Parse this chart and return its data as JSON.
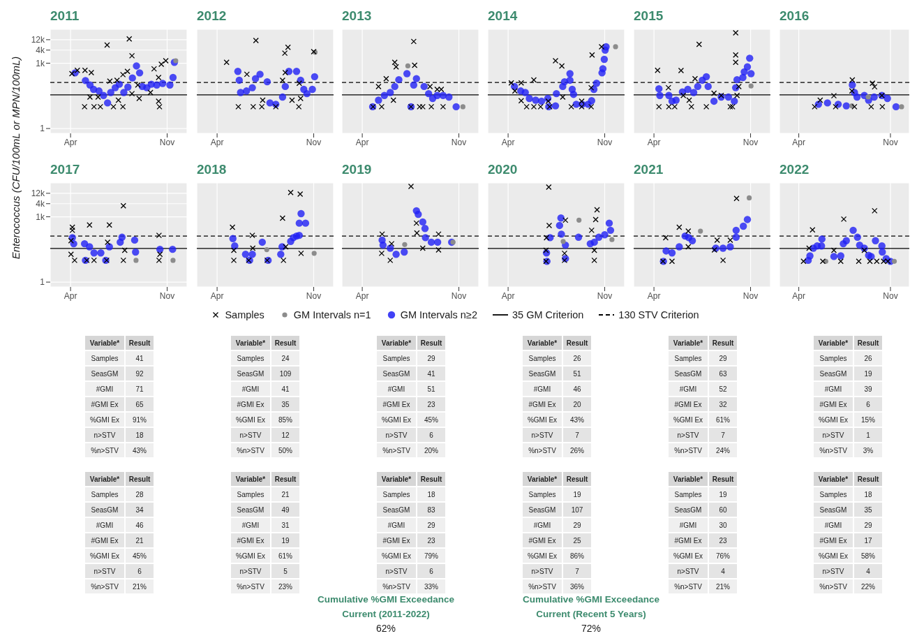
{
  "chart_data": [
    {
      "type": "scatter",
      "title": "2011",
      "ylabel": "Enterococcus (CFU/100mL or MPN/100mL)",
      "legend": "bottom",
      "log": true,
      "grid": true,
      "xlim": [
        "--02-15",
        "--12-15"
      ],
      "xticks": [
        {
          "value": "--04-01",
          "label": "Apr"
        },
        {
          "value": "--11-01",
          "label": "Nov"
        }
      ],
      "ylim": [
        0.6,
        36000
      ],
      "yticks": [
        1,
        {
          "value": 1000,
          "label": "1k"
        },
        {
          "value": 4000,
          "label": "4k"
        },
        {
          "value": 12000,
          "label": "12k"
        }
      ],
      "ref_lines": [
        {
          "axis": "y",
          "value": 35,
          "label": "35 GM Criterion",
          "line_style": "solid",
          "color": "#000000"
        },
        {
          "axis": "y",
          "value": 130,
          "label": "130 STV Criterion",
          "line_style": "dashed",
          "color": "#000000"
        }
      ],
      "series": [
        {
          "name": "Samples",
          "color": "#000000",
          "marker": "cross",
          "x": [
            "--04-04",
            "--04-16",
            "--05-03",
            "--05-17",
            "--05-02",
            "--05-23",
            "--06-06",
            "--05-14",
            "--06-01",
            "--06-21",
            "--06-27",
            "--07-05",
            "--07-13",
            "--07-16",
            "--07-26",
            "--07-26",
            "--08-05",
            "--08-09",
            "--08-15",
            "--08-15",
            "--08-31",
            "--08-28",
            "--09-25",
            "--10-03",
            "--10-13",
            "--10-13",
            "--10-15",
            "--10-19",
            "--10-29"
          ],
          "values": [
            330,
            470,
            470,
            370,
            10,
            10,
            10,
            28,
            28,
            6800,
            150,
            10,
            165,
            20,
            10,
            300,
            420,
            13000,
            2200,
            40,
            24,
            100,
            45,
            550,
            220,
            18,
            10,
            900,
            1300
          ]
        },
        {
          "name": "GM Intervals n=1",
          "color": "#8c8c8c",
          "marker": "circle",
          "x": [
            "--11-20"
          ],
          "values": [
            1300
          ]
        },
        {
          "name": "GM Intervals n≥2",
          "color": "#2020f5",
          "marker": "circle",
          "x": [
            "--04-11",
            "--05-04",
            "--05-14",
            "--05-22",
            "--06-03",
            "--06-13",
            "--06-22",
            "--06-29",
            "--07-09",
            "--07-18",
            "--07-28",
            "--08-06",
            "--08-16",
            "--08-25",
            "--09-01",
            "--09-07",
            "--09-17",
            "--09-27",
            "--10-09",
            "--10-22",
            "--11-07",
            "--11-14",
            "--11-17"
          ],
          "values": [
            360,
            160,
            100,
            63,
            53,
            33,
            15,
            45,
            75,
            108,
            45,
            80,
            210,
            750,
            360,
            85,
            75,
            108,
            100,
            118,
            100,
            220,
            1100
          ]
        }
      ]
    },
    {
      "type": "scatter",
      "title": "2012",
      "tick_labels": "x",
      "log": true,
      "grid": true,
      "xlim": [
        "--02-15",
        "--12-15"
      ],
      "xticks": [
        {
          "value": "--04-01",
          "label": "Apr"
        },
        {
          "value": "--11-01",
          "label": "Nov"
        }
      ],
      "ylim": [
        0.6,
        36000
      ],
      "yticks": [
        {
          "value": 1,
          "label": null
        },
        {
          "value": 1000,
          "label": null
        },
        {
          "value": 4000,
          "label": null
        },
        {
          "value": 12000,
          "label": null
        }
      ],
      "ref_lines": [
        {
          "axis": "y",
          "value": 35,
          "line_style": "solid",
          "color": "#000000"
        },
        {
          "axis": "y",
          "value": 130,
          "line_style": "dashed",
          "color": "#000000"
        }
      ],
      "series": [
        {
          "color": "#000000",
          "marker": "cross",
          "x": [
            "--04-22",
            "--05-18",
            "--06-06",
            "--06-26",
            "--06-20",
            "--07-09",
            "--07-11",
            "--08-09",
            "--08-24",
            "--08-29",
            "--09-05",
            "--08-30",
            "--09-14",
            "--09-29",
            "--10-03",
            "--09-30",
            "--11-01"
          ],
          "values": [
            1100,
            10,
            310,
            11000,
            10,
            10,
            20,
            10,
            165,
            2900,
            5400,
            370,
            20,
            10,
            24,
            120,
            3400
          ]
        },
        {
          "color": "#8c8c8c",
          "marker": "circle",
          "x": [
            "--11-04"
          ],
          "values": [
            3200
          ]
        },
        {
          "color": "#2020f5",
          "marker": "circle",
          "x": [
            "--05-17",
            "--05-20",
            "--05-23",
            "--06-05",
            "--06-18",
            "--06-25",
            "--07-05",
            "--07-21",
            "--07-27",
            "--08-09",
            "--08-24",
            "--08-30",
            "--09-07",
            "--09-24",
            "--10-03",
            "--10-10",
            "--10-17",
            "--10-29",
            "--11-03"
          ],
          "values": [
            420,
            165,
            45,
            53,
            75,
            195,
            310,
            140,
            15,
            13,
            28,
            85,
            420,
            420,
            165,
            63,
            40,
            63,
            240
          ]
        }
      ]
    },
    {
      "type": "scatter",
      "title": "2013",
      "tick_labels": "x",
      "log": true,
      "grid": true,
      "xlim": [
        "--02-15",
        "--12-15"
      ],
      "xticks": [
        {
          "value": "--04-01",
          "label": "Apr"
        },
        {
          "value": "--11-01",
          "label": "Nov"
        }
      ],
      "ylim": [
        0.6,
        36000
      ],
      "yticks": [
        {
          "value": 1,
          "label": null
        },
        {
          "value": 1000,
          "label": null
        },
        {
          "value": 4000,
          "label": null
        },
        {
          "value": 12000,
          "label": null
        }
      ],
      "ref_lines": [
        {
          "axis": "y",
          "value": 35,
          "line_style": "solid",
          "color": "#000000"
        },
        {
          "axis": "y",
          "value": 130,
          "line_style": "dashed",
          "color": "#000000"
        }
      ],
      "series": [
        {
          "color": "#000000",
          "marker": "cross",
          "x": [
            "--04-25",
            "--05-07",
            "--05-14",
            "--05-24",
            "--06-12",
            "--06-15",
            "--06-09",
            "--07-18",
            "--07-24",
            "--07-26",
            "--08-06",
            "--08-13",
            "--08-29",
            "--09-01",
            "--09-14",
            "--09-23",
            "--09-27"
          ],
          "values": [
            10,
            85,
            10,
            195,
            1100,
            680,
            20,
            10,
            10000,
            800,
            10,
            10,
            85,
            10,
            63,
            63,
            10
          ]
        },
        {
          "color": "#8c8c8c",
          "marker": "circle",
          "x": [
            "--07-11",
            "--11-10"
          ],
          "values": [
            750,
            10
          ]
        },
        {
          "color": "#2020f5",
          "marker": "circle",
          "x": [
            "--04-24",
            "--05-07",
            "--05-20",
            "--06-02",
            "--06-12",
            "--06-21",
            "--07-09",
            "--07-18",
            "--07-24",
            "--07-30",
            "--08-16",
            "--08-26",
            "--09-04",
            "--09-14",
            "--09-27",
            "--10-10",
            "--10-26"
          ],
          "values": [
            10,
            20,
            33,
            45,
            85,
            175,
            330,
            10,
            100,
            195,
            85,
            40,
            24,
            33,
            33,
            28,
            10
          ]
        }
      ]
    },
    {
      "type": "scatter",
      "title": "2014",
      "tick_labels": "x",
      "log": true,
      "grid": true,
      "xlim": [
        "--02-15",
        "--12-15"
      ],
      "xticks": [
        {
          "value": "--04-01",
          "label": "Apr"
        },
        {
          "value": "--11-01",
          "label": "Nov"
        }
      ],
      "ylim": [
        0.6,
        36000
      ],
      "yticks": [
        {
          "value": 1,
          "label": null
        },
        {
          "value": 1000,
          "label": null
        },
        {
          "value": 4000,
          "label": null
        },
        {
          "value": 12000,
          "label": null
        }
      ],
      "ref_lines": [
        {
          "axis": "y",
          "value": 35,
          "line_style": "solid",
          "color": "#000000"
        },
        {
          "axis": "y",
          "value": 130,
          "line_style": "dashed",
          "color": "#000000"
        }
      ],
      "series": [
        {
          "color": "#000000",
          "marker": "cross",
          "x": [
            "--04-08",
            "--04-16",
            "--04-30",
            "--04-30",
            "--05-12",
            "--05-28",
            "--05-28",
            "--06-12",
            "--06-29",
            "--07-02",
            "--07-15",
            "--07-29",
            "--07-31",
            "--08-19",
            "--09-11",
            "--09-11",
            "--10-02",
            "--10-02",
            "--10-04",
            "--10-25"
          ],
          "values": [
            125,
            53,
            125,
            19,
            10,
            170,
            10,
            10,
            18,
            10,
            1300,
            750,
            28,
            10,
            18,
            10,
            75,
            10,
            2400,
            5700
          ]
        },
        {
          "color": "#8c8c8c",
          "marker": "circle",
          "x": [
            "--11-25"
          ],
          "values": [
            5700
          ]
        },
        {
          "color": "#2020f5",
          "marker": "circle",
          "x": [
            "--04-15",
            "--04-29",
            "--05-09",
            "--05-18",
            "--06-01",
            "--06-14",
            "--06-28",
            "--06-30",
            "--07-15",
            "--07-17",
            "--07-31",
            "--08-04",
            "--08-16",
            "--08-16",
            "--08-21",
            "--08-24",
            "--08-30",
            "--09-12",
            "--09-25",
            "--10-03",
            "--10-08",
            "--10-14",
            "--10-26",
            "--10-28",
            "--10-31",
            "--11-02",
            "--11-04"
          ],
          "values": [
            85,
            53,
            45,
            24,
            20,
            18,
            24,
            10,
            11,
            40,
            85,
            140,
            330,
            165,
            63,
            37,
            13,
            13,
            13,
            19,
            63,
            120,
            360,
            560,
            1500,
            4000,
            5700
          ]
        }
      ]
    },
    {
      "type": "scatter",
      "title": "2015",
      "tick_labels": "x",
      "log": true,
      "grid": true,
      "xlim": [
        "--02-15",
        "--12-15"
      ],
      "xticks": [
        {
          "value": "--04-01",
          "label": "Apr"
        },
        {
          "value": "--11-01",
          "label": "Nov"
        }
      ],
      "ylim": [
        0.6,
        36000
      ],
      "yticks": [
        {
          "value": 1,
          "label": null
        },
        {
          "value": 1000,
          "label": null
        },
        {
          "value": 4000,
          "label": null
        },
        {
          "value": 12000,
          "label": null
        }
      ],
      "ref_lines": [
        {
          "axis": "y",
          "value": 35,
          "line_style": "solid",
          "color": "#000000"
        },
        {
          "axis": "y",
          "value": 130,
          "line_style": "dashed",
          "color": "#000000"
        }
      ],
      "series": [
        {
          "color": "#000000",
          "marker": "cross",
          "x": [
            "--04-09",
            "--04-12",
            "--05-03",
            "--05-04",
            "--05-17",
            "--05-31",
            "--06-05",
            "--06-18",
            "--06-23",
            "--07-01",
            "--07-10",
            "--07-26",
            "--08-12",
            "--08-28",
            "--09-17",
            "--09-22",
            "--09-29",
            "--09-29",
            "--09-29",
            "--10-02",
            "--10-06"
          ],
          "values": [
            470,
            10,
            75,
            10,
            10,
            460,
            33,
            20,
            10,
            195,
            7400,
            10,
            42,
            33,
            10,
            10,
            25000,
            2400,
            1100,
            33,
            85
          ]
        },
        {
          "color": "#8c8c8c",
          "marker": "circle",
          "x": [
            "--11-02"
          ],
          "values": [
            90
          ]
        },
        {
          "color": "#2020f5",
          "marker": "circle",
          "x": [
            "--04-12",
            "--04-14",
            "--05-04",
            "--05-11",
            "--05-20",
            "--06-03",
            "--06-15",
            "--06-28",
            "--07-07",
            "--07-17",
            "--07-26",
            "--07-30",
            "--08-12",
            "--08-28",
            "--09-13",
            "--09-26",
            "--09-29",
            "--10-02",
            "--10-15",
            "--10-18",
            "--10-25",
            "--10-30",
            "--11-02"
          ],
          "values": [
            67,
            33,
            33,
            18,
            20,
            48,
            63,
            45,
            85,
            165,
            240,
            85,
            18,
            28,
            28,
            18,
            75,
            175,
            220,
            400,
            680,
            1700,
            330
          ]
        }
      ]
    },
    {
      "type": "scatter",
      "title": "2016",
      "tick_labels": "x",
      "log": true,
      "grid": true,
      "xlim": [
        "--02-15",
        "--12-15"
      ],
      "xticks": [
        {
          "value": "--04-01",
          "label": "Apr"
        },
        {
          "value": "--11-01",
          "label": "Nov"
        }
      ],
      "ylim": [
        0.6,
        36000
      ],
      "yticks": [
        {
          "value": 1,
          "label": null
        },
        {
          "value": 1000,
          "label": null
        },
        {
          "value": 4000,
          "label": null
        },
        {
          "value": 12000,
          "label": null
        }
      ],
      "ref_lines": [
        {
          "axis": "y",
          "value": 35,
          "line_style": "solid",
          "color": "#000000"
        },
        {
          "axis": "y",
          "value": 130,
          "line_style": "dashed",
          "color": "#000000"
        }
      ],
      "series": [
        {
          "color": "#000000",
          "marker": "cross",
          "x": [
            "--05-08",
            "--05-21",
            "--06-22",
            "--06-26",
            "--08-04",
            "--08-03",
            "--08-09",
            "--09-20",
            "--09-25",
            "--09-17",
            "--10-12",
            "--10-13"
          ],
          "values": [
            10,
            20,
            32,
            10,
            170,
            53,
            10,
            120,
            82,
            10,
            33,
            10
          ]
        },
        {
          "color": "#8c8c8c",
          "marker": "circle",
          "x": [
            "--08-03",
            "--09-10",
            "--11-27"
          ],
          "values": [
            11,
            28,
            10
          ]
        },
        {
          "color": "#2020f5",
          "marker": "circle",
          "x": [
            "--05-17",
            "--06-07",
            "--07-02",
            "--07-21",
            "--08-04",
            "--08-09",
            "--08-15",
            "--09-01",
            "--09-11",
            "--09-24",
            "--10-12",
            "--10-25",
            "--11-14"
          ],
          "values": [
            13,
            15,
            13,
            11,
            100,
            45,
            28,
            33,
            20,
            28,
            33,
            24,
            10
          ]
        }
      ]
    },
    {
      "type": "scatter",
      "title": "2017",
      "log": true,
      "grid": true,
      "xlim": [
        "--02-15",
        "--12-15"
      ],
      "xticks": [
        {
          "value": "--04-01",
          "label": "Apr"
        },
        {
          "value": "--11-01",
          "label": "Nov"
        }
      ],
      "ylim": [
        0.6,
        36000
      ],
      "yticks": [
        1,
        {
          "value": 1000,
          "label": "1k"
        },
        {
          "value": 4000,
          "label": "4k"
        },
        {
          "value": 12000,
          "label": "12k"
        }
      ],
      "ref_lines": [
        {
          "axis": "y",
          "value": 35,
          "line_style": "solid",
          "color": "#000000"
        },
        {
          "axis": "y",
          "value": 130,
          "line_style": "dashed",
          "color": "#000000"
        }
      ],
      "series": [
        {
          "color": "#000000",
          "marker": "cross",
          "x": [
            "--04-05",
            "--04-05",
            "--04-02",
            "--04-02",
            "--04-10",
            "--05-13",
            "--05-07",
            "--05-23",
            "--06-20",
            "--06-26",
            "--06-22",
            "--07-27",
            "--07-27",
            "--07-30",
            "--10-14",
            "--10-14",
            "--10-16"
          ],
          "values": [
            330,
            240,
            80,
            19,
            10,
            420,
            10,
            10,
            10,
            420,
            68,
            3200,
            10,
            29,
            140,
            10,
            19
          ]
        },
        {
          "color": "#8c8c8c",
          "marker": "circle",
          "x": [
            "--08-24",
            "--11-14"
          ],
          "values": [
            10,
            10
          ]
        },
        {
          "color": "#2020f5",
          "marker": "circle",
          "x": [
            "--04-05",
            "--04-08",
            "--05-02",
            "--05-04",
            "--05-13",
            "--05-23",
            "--06-07",
            "--06-18",
            "--06-26",
            "--07-20",
            "--07-24",
            "--08-21",
            "--08-23",
            "--10-16",
            "--11-13"
          ],
          "values": [
            110,
            58,
            58,
            10,
            42,
            22,
            22,
            10,
            42,
            68,
            115,
            85,
            24,
            32,
            32
          ]
        }
      ]
    },
    {
      "type": "scatter",
      "title": "2018",
      "tick_labels": "x",
      "log": true,
      "grid": true,
      "xlim": [
        "--02-15",
        "--12-15"
      ],
      "xticks": [
        {
          "value": "--04-01",
          "label": "Apr"
        },
        {
          "value": "--11-01",
          "label": "Nov"
        }
      ],
      "ylim": [
        0.6,
        36000
      ],
      "yticks": [
        {
          "value": 1,
          "label": null
        },
        {
          "value": 1000,
          "label": null
        },
        {
          "value": 4000,
          "label": null
        },
        {
          "value": 12000,
          "label": null
        }
      ],
      "ref_lines": [
        {
          "axis": "y",
          "value": 35,
          "line_style": "solid",
          "color": "#000000"
        },
        {
          "axis": "y",
          "value": 130,
          "line_style": "dashed",
          "color": "#000000"
        }
      ],
      "series": [
        {
          "color": "#000000",
          "marker": "cross",
          "x": [
            "--05-05",
            "--05-08",
            "--05-08",
            "--06-18",
            "--06-19",
            "--06-10",
            "--07-21",
            "--08-24",
            "--08-26",
            "--09-11",
            "--10-02",
            "--10-04",
            "--08-31"
          ],
          "values": [
            330,
            29,
            10,
            140,
            36,
            10,
            10,
            870,
            10,
            13000,
            11000,
            21,
            42
          ]
        },
        {
          "color": "#8c8c8c",
          "marker": "circle",
          "x": [
            "--07-20",
            "--11-02"
          ],
          "values": [
            31,
            21
          ]
        },
        {
          "color": "#2020f5",
          "marker": "circle",
          "x": [
            "--05-06",
            "--05-10",
            "--06-03",
            "--06-12",
            "--06-18",
            "--07-10",
            "--07-23",
            "--08-20",
            "--08-23",
            "--09-11",
            "--09-17",
            "--09-24",
            "--09-30",
            "--10-04",
            "--09-30",
            "--10-14"
          ],
          "values": [
            100,
            46,
            19,
            10,
            19,
            68,
            10,
            19,
            42,
            74,
            110,
            130,
            140,
            1400,
            510,
            510
          ]
        }
      ]
    },
    {
      "type": "scatter",
      "title": "2019",
      "tick_labels": "x",
      "log": true,
      "grid": true,
      "xlim": [
        "--02-15",
        "--12-15"
      ],
      "xticks": [
        {
          "value": "--04-01",
          "label": "Apr"
        },
        {
          "value": "--11-01",
          "label": "Nov"
        }
      ],
      "ylim": [
        0.6,
        36000
      ],
      "yticks": [
        {
          "value": 1,
          "label": null
        },
        {
          "value": 1000,
          "label": null
        },
        {
          "value": 4000,
          "label": null
        },
        {
          "value": 12000,
          "label": null
        }
      ],
      "ref_lines": [
        {
          "axis": "y",
          "value": 35,
          "line_style": "solid",
          "color": "#000000"
        },
        {
          "axis": "y",
          "value": 130,
          "line_style": "dashed",
          "color": "#000000"
        }
      ],
      "series": [
        {
          "color": "#000000",
          "marker": "cross",
          "x": [
            "--05-15",
            "--05-14",
            "--06-05",
            "--06-02",
            "--07-18",
            "--07-30",
            "--07-31",
            "--08-13",
            "--09-17",
            "--09-17"
          ],
          "values": [
            160,
            21,
            58,
            10,
            25000,
            510,
            180,
            36,
            160,
            30
          ]
        },
        {
          "color": "#8c8c8c",
          "marker": "circle",
          "x": [
            "--07-04",
            "--10-19"
          ],
          "values": [
            53,
            68
          ]
        },
        {
          "color": "#2020f5",
          "marker": "circle",
          "x": [
            "--05-15",
            "--05-17",
            "--06-02",
            "--06-15",
            "--07-03",
            "--07-30",
            "--08-03",
            "--08-13",
            "--08-18",
            "--08-19",
            "--09-01",
            "--09-15",
            "--10-16"
          ],
          "values": [
            85,
            50,
            36,
            19,
            24,
            1900,
            1300,
            580,
            290,
            110,
            68,
            68,
            68
          ]
        }
      ]
    },
    {
      "type": "scatter",
      "title": "2020",
      "tick_labels": "x",
      "log": true,
      "grid": true,
      "xlim": [
        "--02-15",
        "--12-15"
      ],
      "xticks": [
        {
          "value": "--04-01",
          "label": "Apr"
        },
        {
          "value": "--11-01",
          "label": "Nov"
        }
      ],
      "ylim": [
        0.6,
        36000
      ],
      "yticks": [
        {
          "value": 1,
          "label": null
        },
        {
          "value": 1000,
          "label": null
        },
        {
          "value": 4000,
          "label": null
        },
        {
          "value": 12000,
          "label": null
        }
      ],
      "ref_lines": [
        {
          "axis": "y",
          "value": 35,
          "line_style": "solid",
          "color": "#000000"
        },
        {
          "axis": "y",
          "value": 130,
          "line_style": "dashed",
          "color": "#000000"
        }
      ],
      "series": [
        {
          "color": "#000000",
          "marker": "cross",
          "x": [
            "--06-30",
            "--07-01",
            "--06-25",
            "--06-24",
            "--06-24",
            "--08-06",
            "--08-04",
            "--08-04",
            "--10-03",
            "--10-09",
            "--10-12",
            "--10-15",
            "--10-09"
          ],
          "values": [
            23000,
            400,
            110,
            29,
            9,
            700,
            21,
            10,
            240,
            10,
            750,
            2100,
            29
          ]
        },
        {
          "color": "#8c8c8c",
          "marker": "circle",
          "x": [
            "--08-01",
            "--09-05",
            "--11-17"
          ],
          "values": [
            74,
            700,
            90
          ]
        },
        {
          "color": "#2020f5",
          "marker": "circle",
          "x": [
            "--06-25",
            "--06-26",
            "--07-03",
            "--07-24",
            "--07-27",
            "--07-28",
            "--08-06",
            "--08-06",
            "--09-04",
            "--09-30",
            "--10-09",
            "--10-19",
            "--11-01",
            "--11-11",
            "--11-14"
          ],
          "values": [
            22,
            9,
            110,
            400,
            880,
            160,
            50,
            12,
            115,
            58,
            68,
            115,
            150,
            510,
            240
          ]
        }
      ]
    },
    {
      "type": "scatter",
      "title": "2021",
      "tick_labels": "x",
      "log": true,
      "grid": true,
      "xlim": [
        "--02-15",
        "--12-15"
      ],
      "xticks": [
        {
          "value": "--04-01",
          "label": "Apr"
        },
        {
          "value": "--11-01",
          "label": "Nov"
        }
      ],
      "ylim": [
        0.6,
        36000
      ],
      "yticks": [
        {
          "value": 1,
          "label": null
        },
        {
          "value": 1000,
          "label": null
        },
        {
          "value": 4000,
          "label": null
        },
        {
          "value": 12000,
          "label": null
        }
      ],
      "ref_lines": [
        {
          "axis": "y",
          "value": 35,
          "line_style": "solid",
          "color": "#000000"
        },
        {
          "axis": "y",
          "value": 130,
          "line_style": "dashed",
          "color": "#000000"
        }
      ],
      "series": [
        {
          "color": "#000000",
          "marker": "cross",
          "x": [
            "--04-21",
            "--04-27",
            "--05-11",
            "--05-27",
            "--06-16",
            "--06-16",
            "--08-13",
            "--08-19",
            "--09-01",
            "--09-17",
            "--10-01"
          ],
          "values": [
            9,
            110,
            9,
            330,
            220,
            42,
            30,
            85,
            10,
            85,
            7000
          ]
        },
        {
          "color": "#8c8c8c",
          "marker": "circle",
          "x": [
            "--07-13",
            "--10-29"
          ],
          "values": [
            220,
            7400
          ]
        },
        {
          "color": "#2020f5",
          "marker": "circle",
          "x": [
            "--04-22",
            "--04-28",
            "--05-11",
            "--05-27",
            "--06-09",
            "--06-17",
            "--06-25",
            "--08-16",
            "--09-01",
            "--09-17",
            "--09-30",
            "--09-30",
            "--10-16",
            "--10-25"
          ],
          "values": [
            9,
            27,
            22,
            42,
            130,
            110,
            80,
            36,
            36,
            42,
            115,
            240,
            370,
            750
          ]
        }
      ]
    },
    {
      "type": "scatter",
      "title": "2022",
      "tick_labels": "x",
      "log": true,
      "grid": true,
      "xlim": [
        "--02-15",
        "--12-15"
      ],
      "xticks": [
        {
          "value": "--04-01",
          "label": "Apr"
        },
        {
          "value": "--11-01",
          "label": "Nov"
        }
      ],
      "ylim": [
        0.6,
        36000
      ],
      "yticks": [
        {
          "value": 1,
          "label": null
        },
        {
          "value": 1000,
          "label": null
        },
        {
          "value": 4000,
          "label": null
        },
        {
          "value": 12000,
          "label": null
        }
      ],
      "ref_lines": [
        {
          "axis": "y",
          "value": 35,
          "line_style": "solid",
          "color": "#000000"
        },
        {
          "axis": "y",
          "value": 130,
          "line_style": "dashed",
          "color": "#000000"
        }
      ],
      "series": [
        {
          "color": "#000000",
          "marker": "cross",
          "x": [
            "--04-12",
            "--04-25",
            "--05-03",
            "--05-27",
            "--06-22",
            "--07-08",
            "--07-15",
            "--08-19",
            "--09-01",
            "--09-14",
            "--09-25",
            "--09-30",
            "--10-16",
            "--10-26"
          ],
          "values": [
            9,
            36,
            250,
            9,
            29,
            9,
            780,
            9,
            29,
            9,
            1900,
            9,
            9,
            9
          ]
        },
        {
          "color": "#8c8c8c",
          "marker": "circle",
          "x": [
            "--06-03",
            "--11-10"
          ],
          "values": [
            9,
            9
          ]
        },
        {
          "color": "#2020f5",
          "marker": "circle",
          "x": [
            "--04-23",
            "--04-27",
            "--05-05",
            "--05-14",
            "--05-24",
            "--05-25",
            "--06-22",
            "--07-08",
            "--07-14",
            "--07-21",
            "--08-06",
            "--08-16",
            "--08-21",
            "--09-01",
            "--09-11",
            "--09-17",
            "--09-27",
            "--10-12",
            "--10-13",
            "--10-22",
            "--11-01"
          ],
          "values": [
            10,
            16,
            36,
            46,
            46,
            95,
            15,
            16,
            58,
            80,
            240,
            115,
            50,
            36,
            17,
            15,
            80,
            46,
            24,
            12,
            9
          ]
        }
      ]
    },
    {
      "type": "other",
      "annotations": [
        "Variable*",
        "Result"
      ],
      "categories": [
        "Samples",
        "SeasGM",
        "#GMI",
        "#GMI Ex",
        "%GMI Ex",
        "n>STV",
        "%n>STV"
      ],
      "value_labels": [
        "41",
        "92",
        "71",
        "65",
        "91%",
        "18",
        "43%"
      ]
    },
    {
      "type": "other",
      "annotations": [
        "Variable*",
        "Result"
      ],
      "categories": [
        "Samples",
        "SeasGM",
        "#GMI",
        "#GMI Ex",
        "%GMI Ex",
        "n>STV",
        "%n>STV"
      ],
      "value_labels": [
        "24",
        "109",
        "41",
        "35",
        "85%",
        "12",
        "50%"
      ]
    },
    {
      "type": "other",
      "annotations": [
        "Variable*",
        "Result"
      ],
      "categories": [
        "Samples",
        "SeasGM",
        "#GMI",
        "#GMI Ex",
        "%GMI Ex",
        "n>STV",
        "%n>STV"
      ],
      "value_labels": [
        "29",
        "41",
        "51",
        "23",
        "45%",
        "6",
        "20%"
      ]
    },
    {
      "type": "other",
      "annotations": [
        "Variable*",
        "Result"
      ],
      "categories": [
        "Samples",
        "SeasGM",
        "#GMI",
        "#GMI Ex",
        "%GMI Ex",
        "n>STV",
        "%n>STV"
      ],
      "value_labels": [
        "26",
        "51",
        "46",
        "20",
        "43%",
        "7",
        "26%"
      ]
    },
    {
      "type": "other",
      "annotations": [
        "Variable*",
        "Result"
      ],
      "categories": [
        "Samples",
        "SeasGM",
        "#GMI",
        "#GMI Ex",
        "%GMI Ex",
        "n>STV",
        "%n>STV"
      ],
      "value_labels": [
        "29",
        "63",
        "52",
        "32",
        "61%",
        "7",
        "24%"
      ]
    },
    {
      "type": "other",
      "annotations": [
        "Variable*",
        "Result"
      ],
      "categories": [
        "Samples",
        "SeasGM",
        "#GMI",
        "#GMI Ex",
        "%GMI Ex",
        "n>STV",
        "%n>STV"
      ],
      "value_labels": [
        "26",
        "19",
        "39",
        "6",
        "15%",
        "1",
        "3%"
      ]
    },
    {
      "type": "other",
      "annotations": [
        "Variable*",
        "Result"
      ],
      "categories": [
        "Samples",
        "SeasGM",
        "#GMI",
        "#GMI Ex",
        "%GMI Ex",
        "n>STV",
        "%n>STV"
      ],
      "value_labels": [
        "28",
        "34",
        "46",
        "21",
        "45%",
        "6",
        "21%"
      ]
    },
    {
      "type": "other",
      "annotations": [
        "Variable*",
        "Result"
      ],
      "categories": [
        "Samples",
        "SeasGM",
        "#GMI",
        "#GMI Ex",
        "%GMI Ex",
        "n>STV",
        "%n>STV"
      ],
      "value_labels": [
        "21",
        "49",
        "31",
        "19",
        "61%",
        "5",
        "23%"
      ]
    },
    {
      "type": "other",
      "annotations": [
        "Variable*",
        "Result"
      ],
      "categories": [
        "Samples",
        "SeasGM",
        "#GMI",
        "#GMI Ex",
        "%GMI Ex",
        "n>STV",
        "%n>STV"
      ],
      "value_labels": [
        "18",
        "83",
        "29",
        "23",
        "79%",
        "6",
        "33%"
      ]
    },
    {
      "type": "other",
      "annotations": [
        "Variable*",
        "Result"
      ],
      "categories": [
        "Samples",
        "SeasGM",
        "#GMI",
        "#GMI Ex",
        "%GMI Ex",
        "n>STV",
        "%n>STV"
      ],
      "value_labels": [
        "19",
        "107",
        "29",
        "25",
        "86%",
        "7",
        "36%"
      ]
    },
    {
      "type": "other",
      "annotations": [
        "Variable*",
        "Result"
      ],
      "categories": [
        "Samples",
        "SeasGM",
        "#GMI",
        "#GMI Ex",
        "%GMI Ex",
        "n>STV",
        "%n>STV"
      ],
      "value_labels": [
        "19",
        "60",
        "30",
        "23",
        "76%",
        "4",
        "21%"
      ]
    },
    {
      "type": "other",
      "annotations": [
        "Variable*",
        "Result"
      ],
      "categories": [
        "Samples",
        "SeasGM",
        "#GMI",
        "#GMI Ex",
        "%GMI Ex",
        "n>STV",
        "%n>STV"
      ],
      "value_labels": [
        "18",
        "35",
        "29",
        "17",
        "58%",
        "4",
        "22%"
      ]
    },
    {
      "type": "other",
      "title": "Cumulative %GMI Exceedance",
      "subtitle": "Current (2011-2022)",
      "annotations": [
        "62%"
      ]
    },
    {
      "type": "other",
      "title": "Cumulative %GMI Exceedance",
      "subtitle": "Current (Recent 5 Years)",
      "annotations": [
        "72%"
      ]
    }
  ]
}
